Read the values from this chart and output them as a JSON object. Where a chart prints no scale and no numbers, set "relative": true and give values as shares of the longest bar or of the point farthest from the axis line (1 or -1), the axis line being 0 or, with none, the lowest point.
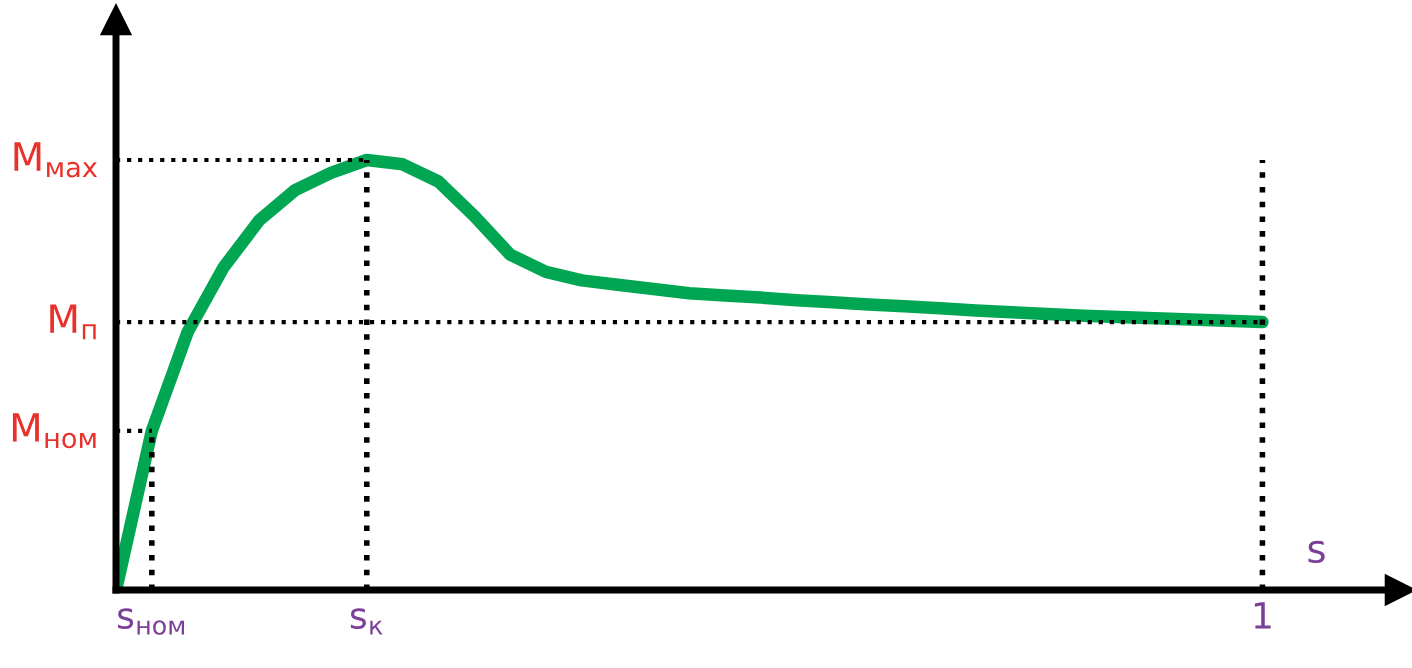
{
  "chart_data": {
    "type": "line",
    "relative": true,
    "xlabel": "s",
    "categories": [
      null,
      "s$_{ном}$",
      null,
      null,
      null,
      null,
      null,
      "s$_{к}$",
      null,
      null,
      null,
      null,
      null,
      null,
      null,
      null,
      null,
      null,
      null,
      null,
      null,
      null,
      null,
      null,
      null,
      null,
      null,
      null,
      null,
      null,
      null,
      null,
      "1"
    ],
    "series": [
      {
        "color": "#00a651",
        "values": [
          0,
          0.37,
          0.6,
          0.75,
          0.86,
          0.93,
          0.97,
          1.0,
          0.99,
          0.95,
          0.87,
          0.78,
          0.74,
          0.72,
          0.71,
          0.7,
          0.69,
          0.685,
          0.68,
          0.674,
          0.669,
          0.664,
          0.66,
          0.655,
          0.65,
          0.646,
          0.642,
          0.638,
          0.635,
          0.632,
          0.629,
          0.626,
          0.623
        ]
      }
    ],
    "annotations": [
      {
        "text": "M$_{мах}$",
        "x": "s$_{к}$",
        "y": 1.0
      },
      {
        "text": "M$_{п}$",
        "x": "1",
        "y": 0.623
      },
      {
        "text": "M$_{ном}$",
        "x": "s$_{ном}$",
        "y": 0.37
      }
    ],
    "ref_lines": [
      {
        "axis": "x",
        "value": "s$_{ном}$",
        "line_style": "dotted"
      },
      {
        "axis": "x",
        "value": "s$_{к}$",
        "line_style": "dotted"
      }
    ],
    "grid": false,
    "legend": false,
    "marker": "none",
    "line_style": "solid"
  }
}
